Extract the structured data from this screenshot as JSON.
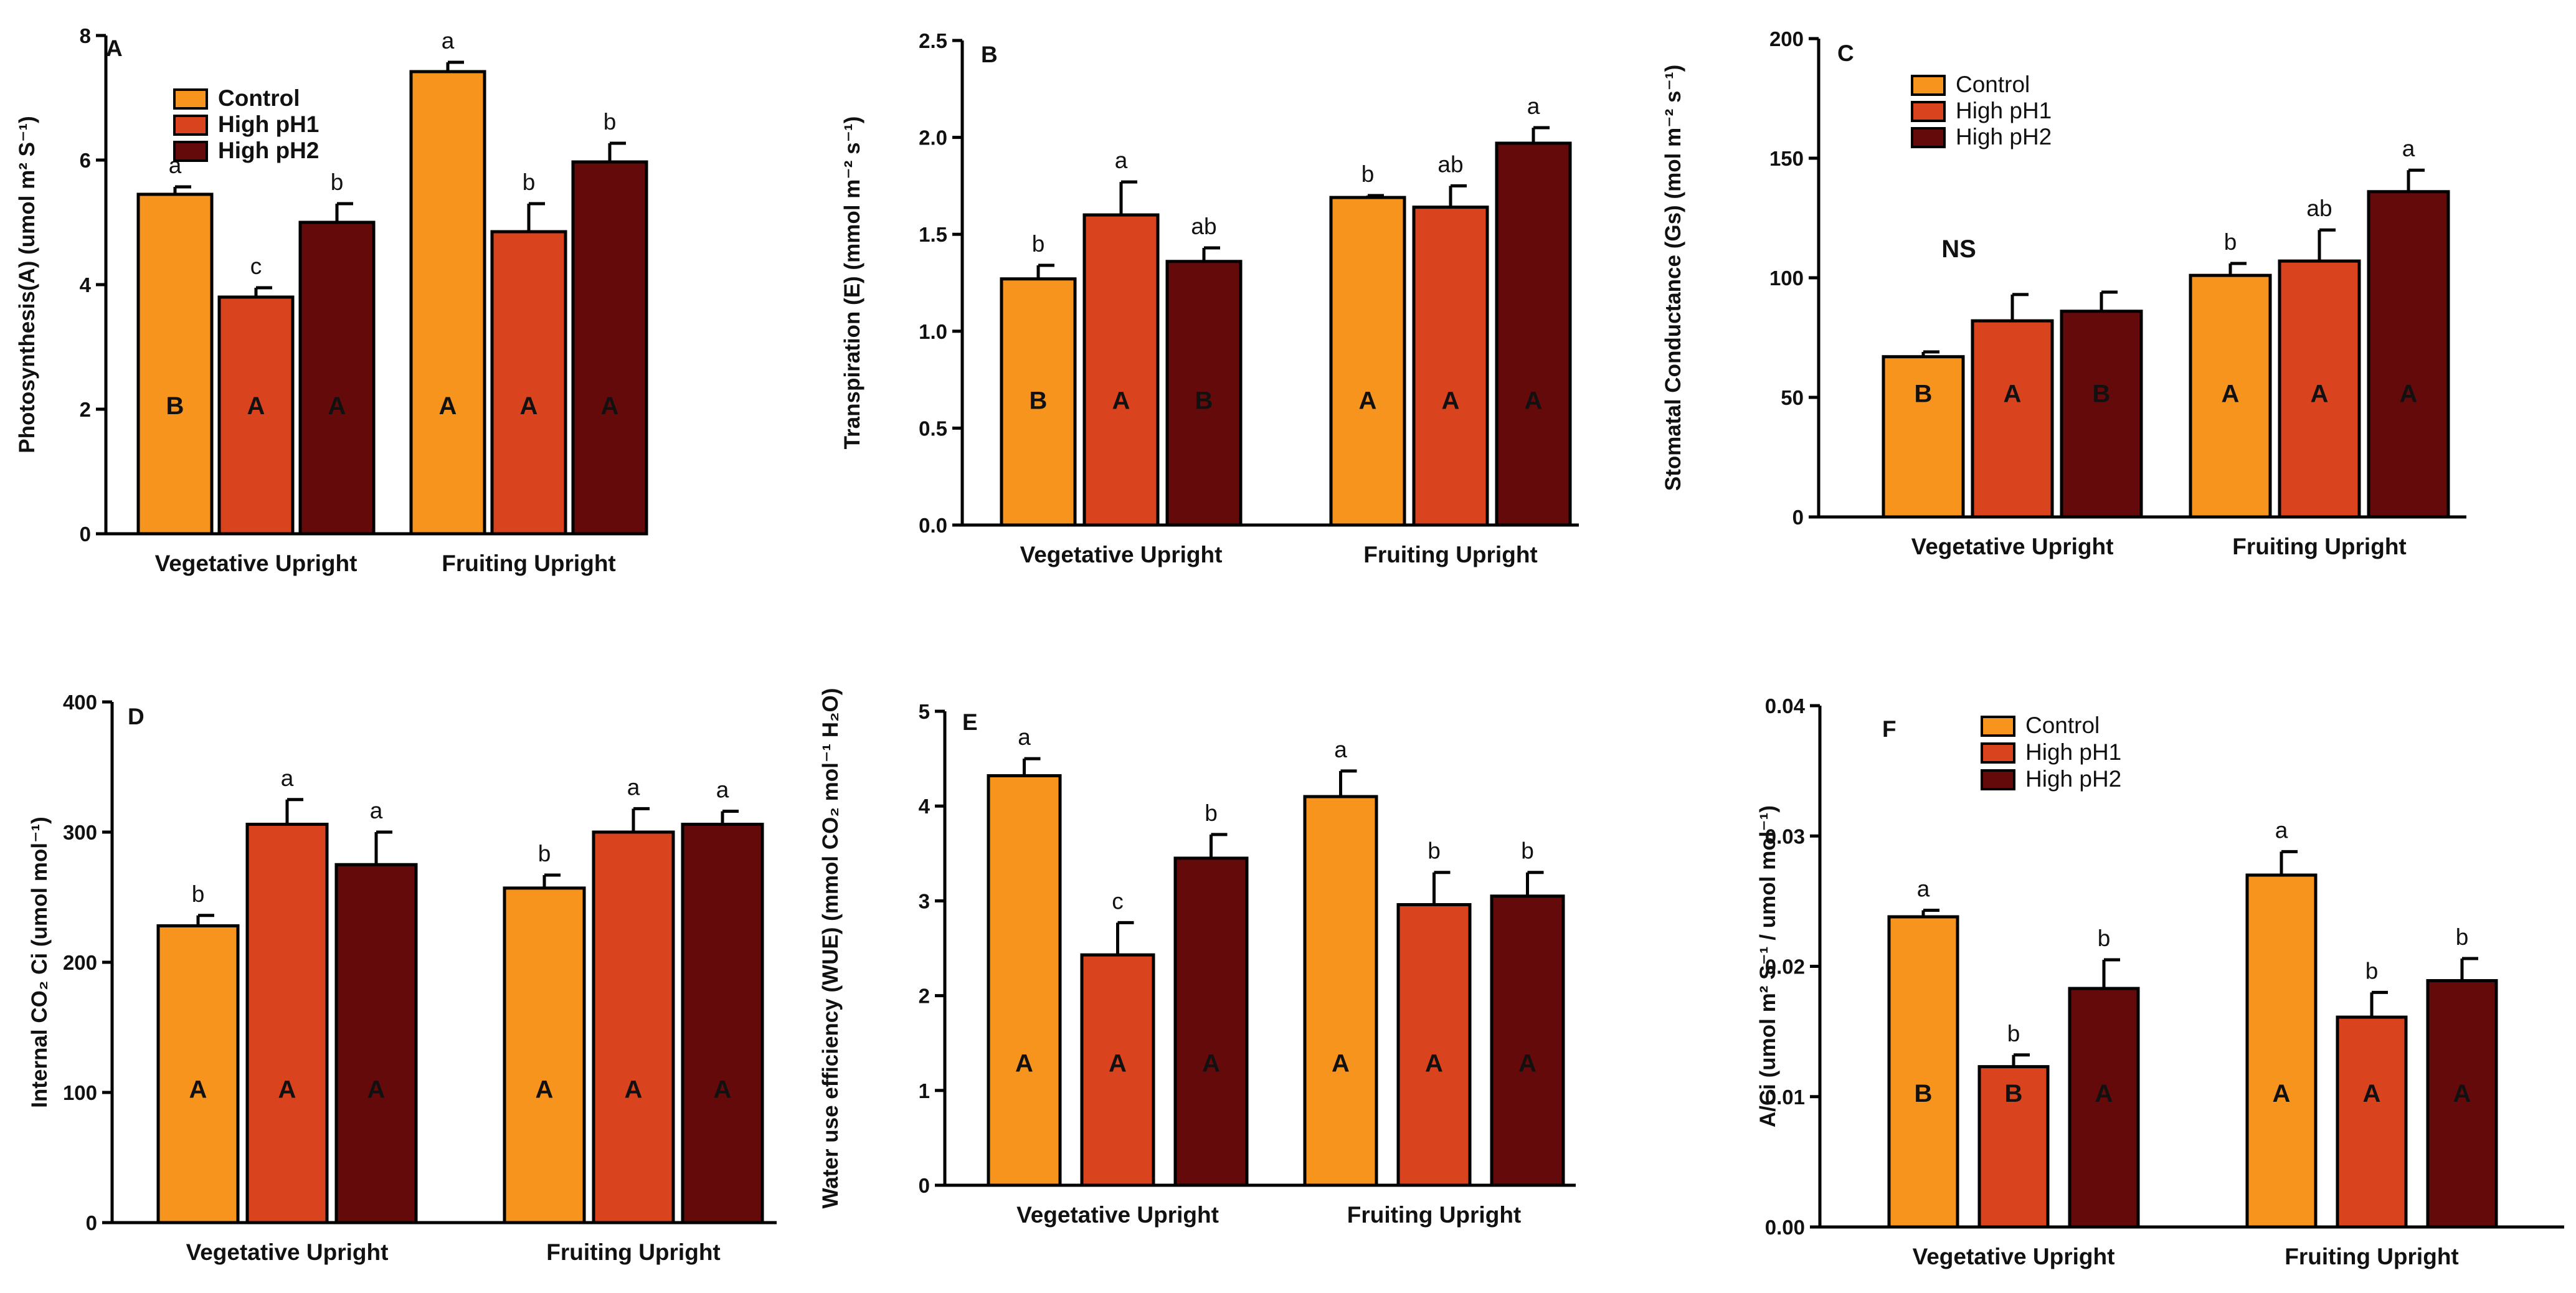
{
  "figure": {
    "colors": {
      "Control": "#F7941D",
      "High pH1": "#D9431E",
      "High pH2": "#650A0A"
    }
  },
  "chart_data": [
    {
      "panel": "A",
      "type": "bar",
      "ylabel": "Photosynthesis(A) (umol m² S⁻¹)",
      "ylim": [
        0,
        8
      ],
      "yticks": [
        "0",
        "2",
        "4",
        "6",
        "8"
      ],
      "categories": [
        "Vegetative Upright",
        "Fruiting Upright"
      ],
      "legend": [
        "Control",
        "High pH1",
        "High pH2"
      ],
      "series": [
        {
          "name": "Control",
          "values": [
            5.45,
            7.42
          ],
          "errors": [
            0.12,
            0.15
          ],
          "lower_letters": [
            "a",
            "a"
          ],
          "upper_letters": [
            "B",
            "A"
          ]
        },
        {
          "name": "High pH1",
          "values": [
            3.8,
            4.85
          ],
          "errors": [
            0.15,
            0.45
          ],
          "lower_letters": [
            "c",
            "b"
          ],
          "upper_letters": [
            "A",
            "A"
          ]
        },
        {
          "name": "High pH2",
          "values": [
            5.0,
            5.97
          ],
          "errors": [
            0.3,
            0.3
          ],
          "lower_letters": [
            "b",
            "b"
          ],
          "upper_letters": [
            "A",
            "A"
          ]
        }
      ]
    },
    {
      "panel": "B",
      "type": "bar",
      "ylabel": "Transpiration (E) (mmol m⁻² s⁻¹)",
      "ylim": [
        0,
        2.5
      ],
      "yticks": [
        "0.0",
        "0.5",
        "1.0",
        "1.5",
        "2.0",
        "2.5"
      ],
      "categories": [
        "Vegetative Upright",
        "Fruiting Upright"
      ],
      "legend": [],
      "series": [
        {
          "name": "Control",
          "values": [
            1.27,
            1.69
          ],
          "errors": [
            0.07,
            0.01
          ],
          "lower_letters": [
            "b",
            "b"
          ],
          "upper_letters": [
            "B",
            "A"
          ]
        },
        {
          "name": "High pH1",
          "values": [
            1.6,
            1.64
          ],
          "errors": [
            0.17,
            0.11
          ],
          "lower_letters": [
            "a",
            "ab"
          ],
          "upper_letters": [
            "A",
            "A"
          ]
        },
        {
          "name": "High pH2",
          "values": [
            1.36,
            1.97
          ],
          "errors": [
            0.07,
            0.08
          ],
          "lower_letters": [
            "ab",
            "a"
          ],
          "upper_letters": [
            "B",
            "A"
          ]
        }
      ]
    },
    {
      "panel": "C",
      "type": "bar",
      "ylabel": "Stomatal Conductance (Gs) (mol m⁻² s⁻¹)",
      "ylim": [
        0,
        200
      ],
      "yticks": [
        "0",
        "50",
        "100",
        "150",
        "200"
      ],
      "categories": [
        "Vegetative Upright",
        "Fruiting Upright"
      ],
      "legend": [
        "Control",
        "High pH1",
        "High pH2"
      ],
      "annotation": "NS",
      "series": [
        {
          "name": "Control",
          "values": [
            67,
            101
          ],
          "errors": [
            2,
            5
          ],
          "lower_letters": [
            "",
            "b"
          ],
          "upper_letters": [
            "B",
            "A"
          ]
        },
        {
          "name": "High pH1",
          "values": [
            82,
            107
          ],
          "errors": [
            11,
            13
          ],
          "lower_letters": [
            "",
            "ab"
          ],
          "upper_letters": [
            "A",
            "A"
          ]
        },
        {
          "name": "High pH2",
          "values": [
            86,
            136
          ],
          "errors": [
            8,
            9
          ],
          "lower_letters": [
            "",
            "a"
          ],
          "upper_letters": [
            "B",
            "A"
          ]
        }
      ]
    },
    {
      "panel": "D",
      "type": "bar",
      "ylabel": "Internal CO₂ Ci (umol mol⁻¹)",
      "ylim": [
        0,
        400
      ],
      "yticks": [
        "0",
        "100",
        "200",
        "300",
        "400"
      ],
      "categories": [
        "Vegetative Upright",
        "Fruiting Upright"
      ],
      "legend": [],
      "series": [
        {
          "name": "Control",
          "values": [
            228,
            257
          ],
          "errors": [
            8,
            10
          ],
          "lower_letters": [
            "b",
            "b"
          ],
          "upper_letters": [
            "A",
            "A"
          ]
        },
        {
          "name": "High pH1",
          "values": [
            306,
            300
          ],
          "errors": [
            19,
            18
          ],
          "lower_letters": [
            "a",
            "a"
          ],
          "upper_letters": [
            "A",
            "A"
          ]
        },
        {
          "name": "High pH2",
          "values": [
            275,
            306
          ],
          "errors": [
            25,
            10
          ],
          "lower_letters": [
            "a",
            "a"
          ],
          "upper_letters": [
            "A",
            "A"
          ]
        }
      ]
    },
    {
      "panel": "E",
      "type": "bar",
      "ylabel": "Water use efficiency (WUE) (mmol CO₂ mol⁻¹ H₂O)",
      "ylim": [
        0,
        5
      ],
      "yticks": [
        "0",
        "1",
        "2",
        "3",
        "4",
        "5"
      ],
      "categories": [
        "Vegetative Upright",
        "Fruiting Upright"
      ],
      "legend": [],
      "series": [
        {
          "name": "Control",
          "values": [
            4.32,
            4.1
          ],
          "errors": [
            0.18,
            0.27
          ],
          "lower_letters": [
            "a",
            "a"
          ],
          "upper_letters": [
            "A",
            "A"
          ]
        },
        {
          "name": "High pH1",
          "values": [
            2.43,
            2.96
          ],
          "errors": [
            0.34,
            0.34
          ],
          "lower_letters": [
            "c",
            "b"
          ],
          "upper_letters": [
            "A",
            "A"
          ]
        },
        {
          "name": "High pH2",
          "values": [
            3.45,
            3.05
          ],
          "errors": [
            0.25,
            0.25
          ],
          "lower_letters": [
            "b",
            "b"
          ],
          "upper_letters": [
            "A",
            "A"
          ]
        }
      ]
    },
    {
      "panel": "F",
      "type": "bar",
      "ylabel": "A/Ci (umol m² S⁻¹ / umol mol⁻¹)",
      "ylim": [
        0,
        0.04
      ],
      "yticks": [
        "0.00",
        "0.01",
        "0.02",
        "0.03",
        "0.04"
      ],
      "categories": [
        "Vegetative Upright",
        "Fruiting Upright"
      ],
      "legend": [
        "Control",
        "High pH1",
        "High pH2"
      ],
      "series": [
        {
          "name": "Control",
          "values": [
            0.0238,
            0.027
          ],
          "errors": [
            0.0005,
            0.0018
          ],
          "lower_letters": [
            "a",
            "a"
          ],
          "upper_letters": [
            "B",
            "A"
          ]
        },
        {
          "name": "High pH1",
          "values": [
            0.0123,
            0.0161
          ],
          "errors": [
            0.0009,
            0.0019
          ],
          "lower_letters": [
            "b",
            "b"
          ],
          "upper_letters": [
            "B",
            "A"
          ]
        },
        {
          "name": "High pH2",
          "values": [
            0.0183,
            0.0189
          ],
          "errors": [
            0.0022,
            0.0017
          ],
          "lower_letters": [
            "b",
            "b"
          ],
          "upper_letters": [
            "A",
            "A"
          ]
        }
      ]
    }
  ]
}
